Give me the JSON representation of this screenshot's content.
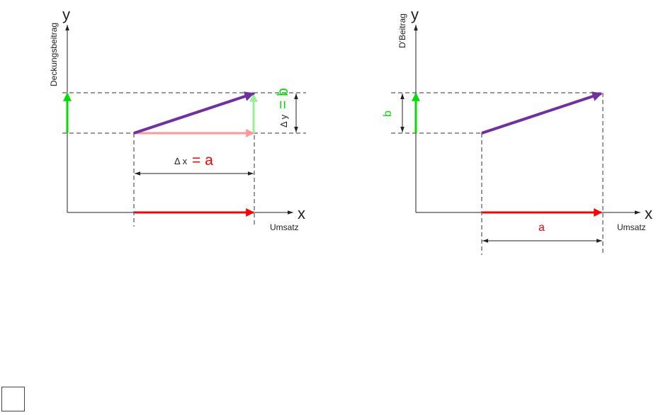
{
  "left_diagram": {
    "y_axis_letter": "y",
    "y_axis_label": "Deckungsbeitrag",
    "x_axis_letter": "x",
    "x_axis_label": "Umsatz",
    "delta_x_label": "Δ x",
    "delta_x_equals": "= a",
    "delta_y_label": "Δ y",
    "delta_y_equals": "= b"
  },
  "right_diagram": {
    "y_axis_letter": "y",
    "y_axis_label": "D'Beitrag",
    "x_axis_letter": "x",
    "x_axis_label": "Umsatz",
    "b_label": "b",
    "a_label": "a"
  },
  "colors": {
    "axis": "#222222",
    "dashed": "#333333",
    "purple": "#7030a0",
    "green": "#00dd00",
    "light_green": "#99ee99",
    "red": "#ff0000",
    "pink": "#ff9999"
  }
}
